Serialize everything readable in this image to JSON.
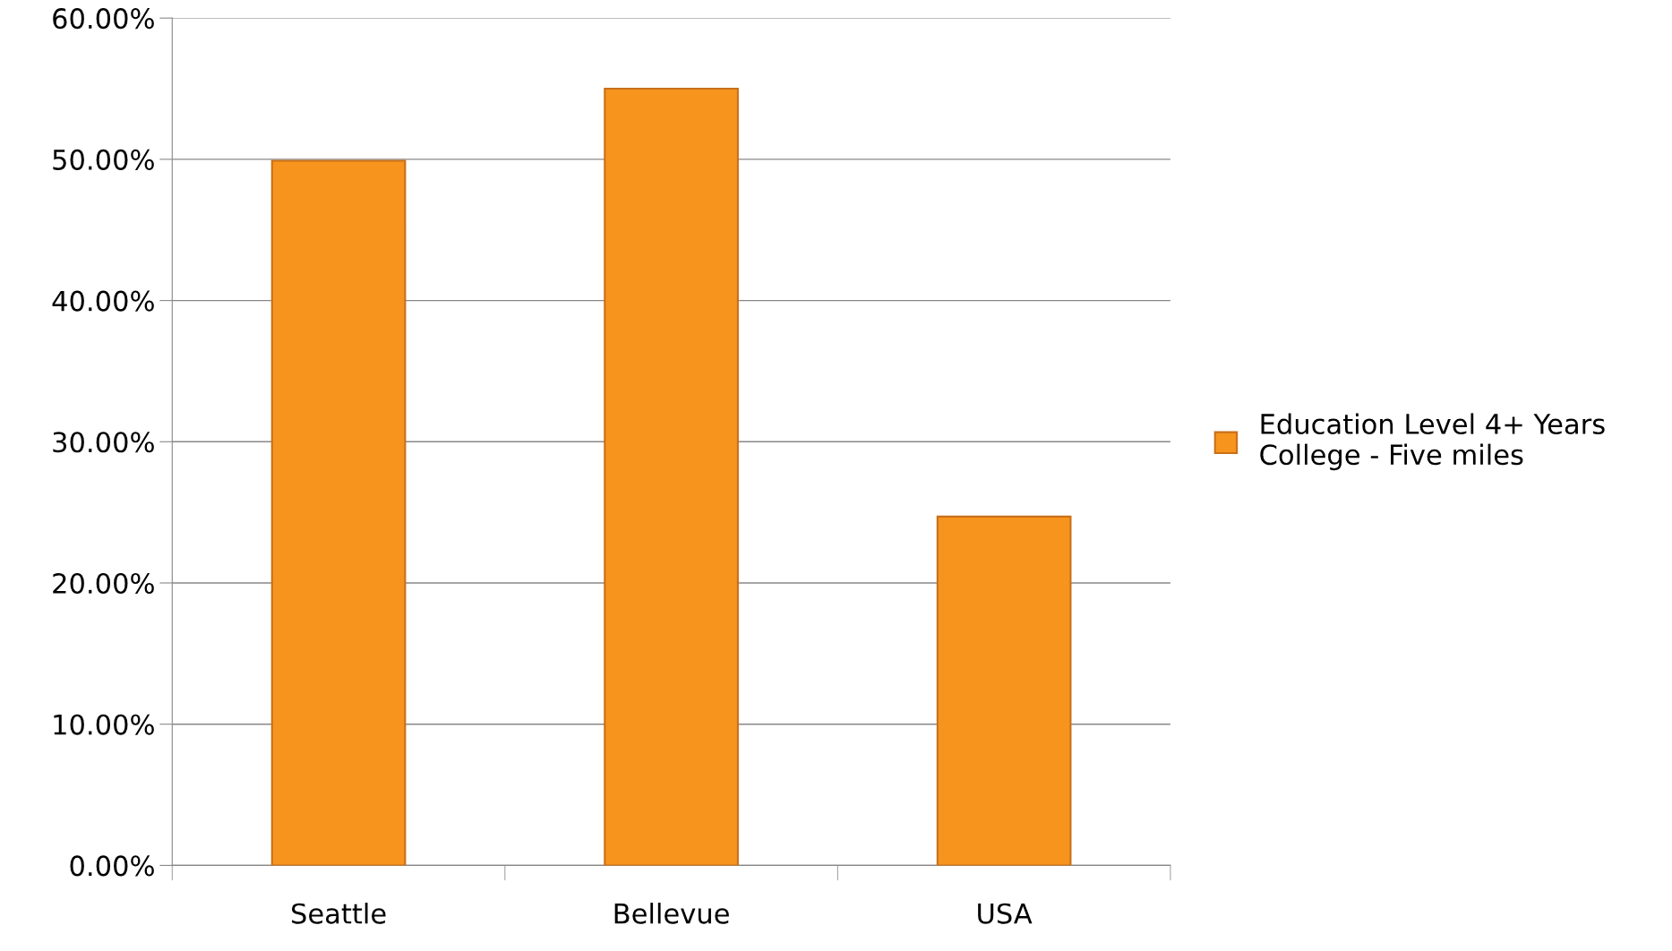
{
  "chart_data": {
    "type": "bar",
    "categories": [
      "Seattle",
      "Bellevue",
      "USA"
    ],
    "series": [
      {
        "name": "Education Level 4+ Years College - Five miles",
        "color": "#f7941d",
        "values": [
          49.9,
          55.0,
          24.7
        ]
      }
    ],
    "ylim": [
      0,
      60
    ],
    "yticks": [
      {
        "value": 0,
        "label": "0.00%"
      },
      {
        "value": 10,
        "label": "10.00%"
      },
      {
        "value": 20,
        "label": "20.00%"
      },
      {
        "value": 30,
        "label": "30.00%"
      },
      {
        "value": 40,
        "label": "40.00%"
      },
      {
        "value": 50,
        "label": "50.00%"
      },
      {
        "value": 60,
        "label": "60.00%"
      }
    ],
    "grid": "y",
    "legend": "right"
  }
}
